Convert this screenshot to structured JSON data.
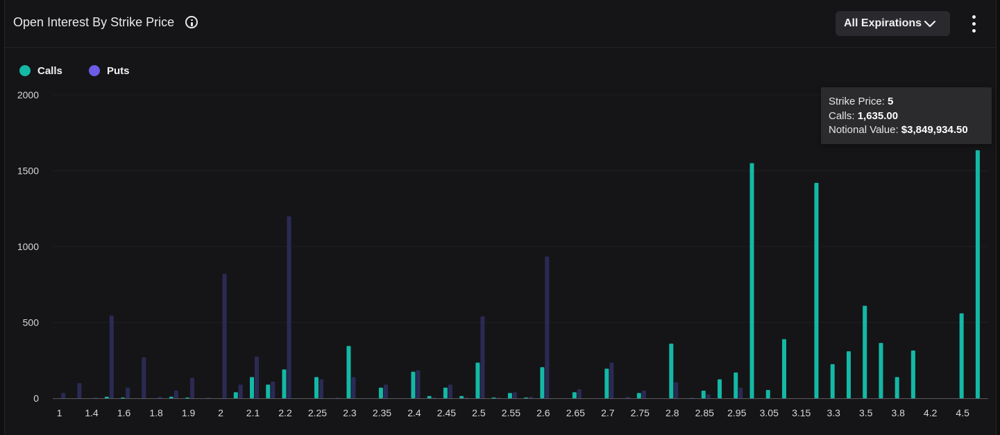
{
  "header": {
    "title": "Open Interest By Strike Price",
    "dropdown_label": "All Expirations"
  },
  "colors": {
    "calls": "#14b8a6",
    "puts": "#6c5ce7",
    "puts_bar": "#2b2a55",
    "background": "#151517"
  },
  "icons": {
    "info": "info-icon",
    "dropdown": "chevron-down-icon",
    "menu": "more-vertical-icon"
  },
  "tooltip": {
    "strike_label": "Strike Price:",
    "strike_value": "5",
    "calls_label": "Calls:",
    "calls_value": "1,635.00",
    "notional_label": "Notional Value:",
    "notional_value": "$3,849,934.50"
  },
  "chart_data": {
    "type": "bar",
    "y_ticks": [
      0,
      500,
      1000,
      1500,
      2000
    ],
    "ylim": [
      0,
      2000
    ],
    "x_tick_labels": [
      "1",
      "1.4",
      "1.6",
      "1.8",
      "1.9",
      "2",
      "2.1",
      "2.2",
      "2.25",
      "2.3",
      "2.35",
      "2.4",
      "2.45",
      "2.5",
      "2.55",
      "2.6",
      "2.65",
      "2.7",
      "2.75",
      "2.8",
      "2.85",
      "2.95",
      "3.05",
      "3.15",
      "3.3",
      "3.5",
      "3.8",
      "4.2",
      "4.5"
    ],
    "categories": [
      "1",
      "1.2",
      "1.4",
      "1.5",
      "1.6",
      "1.7",
      "1.8",
      "1.85",
      "1.9",
      "1.95",
      "2",
      "2.05",
      "2.1",
      "2.15",
      "2.2",
      "2.22",
      "2.25",
      "2.27",
      "2.3",
      "2.32",
      "2.35",
      "2.37",
      "2.4",
      "2.42",
      "2.45",
      "2.47",
      "2.5",
      "2.52",
      "2.55",
      "2.57",
      "2.6",
      "2.62",
      "2.65",
      "2.67",
      "2.7",
      "2.72",
      "2.75",
      "2.77",
      "2.8",
      "2.82",
      "2.85",
      "2.9",
      "2.95",
      "3",
      "3.05",
      "3.1",
      "3.15",
      "3.2",
      "3.3",
      "3.4",
      "3.5",
      "3.6",
      "3.8",
      "4",
      "4.2",
      "4.3",
      "4.5",
      "5"
    ],
    "series": [
      {
        "name": "Calls",
        "values": [
          0,
          0,
          0,
          10,
          5,
          0,
          0,
          10,
          5,
          0,
          0,
          40,
          140,
          90,
          190,
          0,
          140,
          0,
          345,
          0,
          70,
          0,
          175,
          15,
          70,
          15,
          235,
          5,
          35,
          5,
          205,
          0,
          40,
          0,
          195,
          0,
          35,
          0,
          360,
          0,
          50,
          125,
          170,
          1550,
          55,
          390,
          0,
          1420,
          225,
          310,
          610,
          365,
          140,
          315,
          0,
          0,
          560,
          1635
        ]
      },
      {
        "name": "Puts",
        "values": [
          35,
          100,
          5,
          545,
          70,
          270,
          10,
          50,
          135,
          5,
          820,
          90,
          275,
          110,
          1200,
          0,
          125,
          5,
          140,
          0,
          90,
          0,
          185,
          5,
          90,
          5,
          540,
          5,
          40,
          10,
          935,
          0,
          60,
          0,
          235,
          10,
          50,
          0,
          105,
          5,
          25,
          0,
          70,
          0,
          0,
          0,
          0,
          0,
          0,
          0,
          0,
          0,
          0,
          0,
          0,
          0,
          0,
          0
        ]
      }
    ]
  }
}
